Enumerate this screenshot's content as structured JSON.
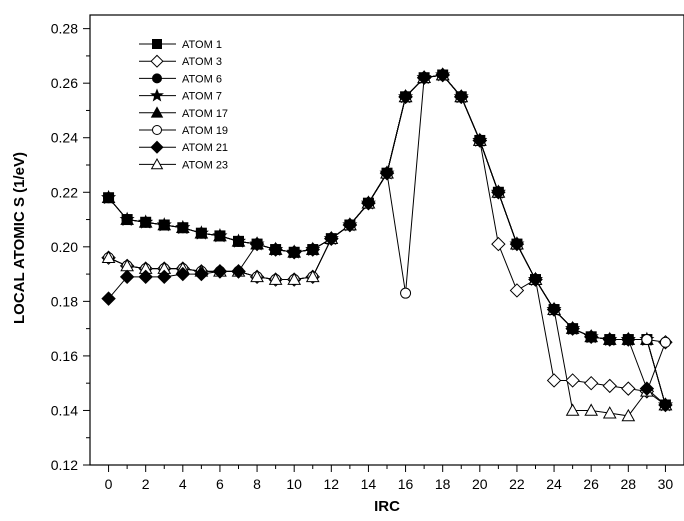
{
  "chart_data": {
    "type": "line",
    "title": "",
    "xlabel": "IRC",
    "ylabel": "LOCAL ATOMIC S (1/eV)",
    "xlim": [
      -1,
      31
    ],
    "ylim": [
      0.12,
      0.285
    ],
    "x_ticks": [
      "0",
      "2",
      "4",
      "6",
      "8",
      "10",
      "12",
      "14",
      "16",
      "18",
      "20",
      "22",
      "24",
      "26",
      "28",
      "30"
    ],
    "y_ticks": [
      "0.12",
      "0.14",
      "0.16",
      "0.18",
      "0.20",
      "0.22",
      "0.24",
      "0.26",
      "0.28"
    ],
    "grid": false,
    "legend_position": "top-left",
    "x": [
      0,
      1,
      2,
      3,
      4,
      5,
      6,
      7,
      8,
      9,
      10,
      11,
      12,
      13,
      14,
      15,
      16,
      17,
      18,
      19,
      20,
      21,
      22,
      23,
      24,
      25,
      26,
      27,
      28,
      29,
      30
    ],
    "series": [
      {
        "name": "ATOM 1",
        "marker": "square-filled",
        "values": [
          0.218,
          0.21,
          0.209,
          0.208,
          0.207,
          0.205,
          0.204,
          0.202,
          0.201,
          0.199,
          0.198,
          0.199,
          0.203,
          0.208,
          0.216,
          0.227,
          0.255,
          0.262,
          0.263,
          0.255,
          0.239,
          0.22,
          0.201,
          0.188,
          0.177,
          0.17,
          0.167,
          0.166,
          0.166,
          0.166,
          0.142
        ]
      },
      {
        "name": "ATOM 3",
        "marker": "diamond-open",
        "values": [
          0.196,
          0.193,
          0.192,
          0.192,
          0.192,
          0.191,
          0.191,
          0.191,
          0.189,
          0.188,
          0.188,
          0.189,
          0.203,
          0.208,
          0.216,
          0.227,
          0.255,
          0.262,
          0.263,
          0.255,
          0.239,
          0.201,
          0.184,
          0.188,
          0.151,
          0.151,
          0.15,
          0.149,
          0.148,
          0.147,
          0.165
        ]
      },
      {
        "name": "ATOM 6",
        "marker": "circle-filled",
        "values": [
          0.218,
          0.21,
          0.209,
          0.208,
          0.207,
          0.205,
          0.204,
          0.202,
          0.201,
          0.199,
          0.198,
          0.199,
          0.203,
          0.208,
          0.216,
          0.227,
          0.255,
          0.262,
          0.263,
          0.255,
          0.239,
          0.22,
          0.201,
          0.188,
          0.177,
          0.17,
          0.167,
          0.166,
          0.166,
          0.166,
          0.142
        ]
      },
      {
        "name": "ATOM 7",
        "marker": "star-filled",
        "values": [
          0.218,
          0.21,
          0.209,
          0.208,
          0.207,
          0.205,
          0.204,
          0.202,
          0.201,
          0.199,
          0.198,
          0.199,
          0.203,
          0.208,
          0.216,
          0.227,
          0.255,
          0.262,
          0.263,
          0.255,
          0.239,
          0.22,
          0.201,
          0.188,
          0.177,
          0.17,
          0.167,
          0.166,
          0.166,
          0.166,
          0.142
        ]
      },
      {
        "name": "ATOM 17",
        "marker": "triangle-filled",
        "values": [
          0.218,
          0.21,
          0.209,
          0.208,
          0.207,
          0.205,
          0.204,
          0.202,
          0.201,
          0.199,
          0.198,
          0.199,
          0.203,
          0.208,
          0.216,
          0.227,
          0.255,
          0.262,
          0.263,
          0.255,
          0.239,
          0.22,
          0.201,
          0.188,
          0.177,
          0.17,
          0.167,
          0.166,
          0.166,
          0.166,
          0.142
        ]
      },
      {
        "name": "ATOM 19",
        "marker": "circle-open",
        "values": [
          0.196,
          0.193,
          0.192,
          0.192,
          0.192,
          0.191,
          0.191,
          0.191,
          0.189,
          0.188,
          0.188,
          0.189,
          0.203,
          0.208,
          0.216,
          0.227,
          0.183,
          0.262,
          0.263,
          0.255,
          0.239,
          0.22,
          0.201,
          0.188,
          0.177,
          0.17,
          0.167,
          0.166,
          0.166,
          0.166,
          0.165
        ]
      },
      {
        "name": "ATOM 21",
        "marker": "diamond-filled",
        "values": [
          0.181,
          0.189,
          0.189,
          0.189,
          0.19,
          0.19,
          0.191,
          0.191,
          0.201,
          0.199,
          0.198,
          0.199,
          0.203,
          0.208,
          0.216,
          0.227,
          0.255,
          0.262,
          0.263,
          0.255,
          0.239,
          0.22,
          0.201,
          0.188,
          0.177,
          0.17,
          0.167,
          0.166,
          0.166,
          0.148,
          0.142
        ]
      },
      {
        "name": "ATOM 23",
        "marker": "triangle-open",
        "values": [
          0.196,
          0.193,
          0.192,
          0.192,
          0.192,
          0.191,
          0.191,
          0.191,
          0.189,
          0.188,
          0.188,
          0.189,
          0.203,
          0.208,
          0.216,
          0.227,
          0.255,
          0.262,
          0.263,
          0.255,
          0.239,
          0.22,
          0.201,
          0.188,
          0.177,
          0.14,
          0.14,
          0.139,
          0.138,
          0.147,
          0.142
        ]
      }
    ]
  }
}
